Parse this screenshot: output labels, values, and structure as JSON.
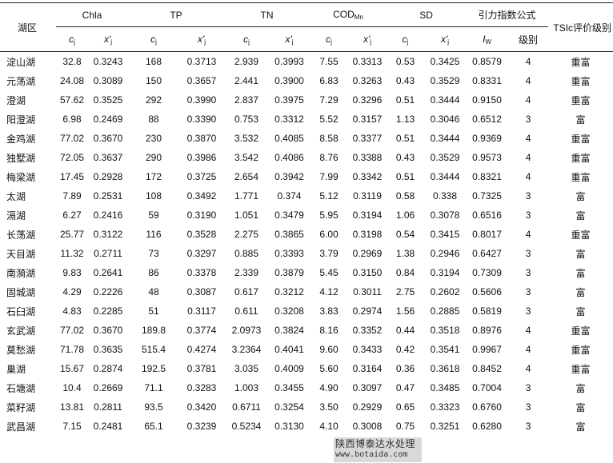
{
  "header": {
    "lake": "湖区",
    "groups": [
      "Chla",
      "TP",
      "TN",
      "COD",
      "SD",
      "引力指数公式"
    ],
    "cod_sub": "Mn",
    "tsi": "TSIc评价级别",
    "c_label": "c",
    "c_sub": "j",
    "x_label": "x'",
    "x_sub": "j",
    "iw_label": "I",
    "iw_sub": "W",
    "level": "级别"
  },
  "rows": [
    [
      "淀山湖",
      "32.8",
      "0.3243",
      "168",
      "0.3713",
      "2.939",
      "0.3993",
      "7.55",
      "0.3313",
      "0.53",
      "0.3425",
      "0.8579",
      "4",
      "重富"
    ],
    [
      "元荡湖",
      "24.08",
      "0.3089",
      "150",
      "0.3657",
      "2.441",
      "0.3900",
      "6.83",
      "0.3263",
      "0.43",
      "0.3529",
      "0.8331",
      "4",
      "重富"
    ],
    [
      "澄湖",
      "57.62",
      "0.3525",
      "292",
      "0.3990",
      "2.837",
      "0.3975",
      "7.29",
      "0.3296",
      "0.51",
      "0.3444",
      "0.9150",
      "4",
      "重富"
    ],
    [
      "阳澄湖",
      "6.98",
      "0.2469",
      "88",
      "0.3390",
      "0.753",
      "0.3312",
      "5.52",
      "0.3157",
      "1.13",
      "0.3046",
      "0.6512",
      "3",
      "富"
    ],
    [
      "金鸡湖",
      "77.02",
      "0.3670",
      "230",
      "0.3870",
      "3.532",
      "0.4085",
      "8.58",
      "0.3377",
      "0.51",
      "0.3444",
      "0.9369",
      "4",
      "重富"
    ],
    [
      "独墅湖",
      "72.05",
      "0.3637",
      "290",
      "0.3986",
      "3.542",
      "0.4086",
      "8.76",
      "0.3388",
      "0.43",
      "0.3529",
      "0.9573",
      "4",
      "重富"
    ],
    [
      "梅梁湖",
      "17.45",
      "0.2928",
      "172",
      "0.3725",
      "2.654",
      "0.3942",
      "7.99",
      "0.3342",
      "0.51",
      "0.3444",
      "0.8321",
      "4",
      "重富"
    ],
    [
      "太湖",
      "7.89",
      "0.2531",
      "108",
      "0.3492",
      "1.771",
      "0.374",
      "5.12",
      "0.3119",
      "0.58",
      "0.338",
      "0.7325",
      "3",
      "富"
    ],
    [
      "滆湖",
      "6.27",
      "0.2416",
      "59",
      "0.3190",
      "1.051",
      "0.3479",
      "5.95",
      "0.3194",
      "1.06",
      "0.3078",
      "0.6516",
      "3",
      "富"
    ],
    [
      "长荡湖",
      "25.77",
      "0.3122",
      "116",
      "0.3528",
      "2.275",
      "0.3865",
      "6.00",
      "0.3198",
      "0.54",
      "0.3415",
      "0.8017",
      "4",
      "重富"
    ],
    [
      "天目湖",
      "11.32",
      "0.2711",
      "73",
      "0.3297",
      "0.885",
      "0.3393",
      "3.79",
      "0.2969",
      "1.38",
      "0.2946",
      "0.6427",
      "3",
      "富"
    ],
    [
      "南漪湖",
      "9.83",
      "0.2641",
      "86",
      "0.3378",
      "2.339",
      "0.3879",
      "5.45",
      "0.3150",
      "0.84",
      "0.3194",
      "0.7309",
      "3",
      "富"
    ],
    [
      "固城湖",
      "4.29",
      "0.2226",
      "48",
      "0.3087",
      "0.617",
      "0.3212",
      "4.12",
      "0.3011",
      "2.75",
      "0.2602",
      "0.5606",
      "3",
      "富"
    ],
    [
      "石臼湖",
      "4.83",
      "0.2285",
      "51",
      "0.3117",
      "0.611",
      "0.3208",
      "3.83",
      "0.2974",
      "1.56",
      "0.2885",
      "0.5819",
      "3",
      "富"
    ],
    [
      "玄武湖",
      "77.02",
      "0.3670",
      "189.8",
      "0.3774",
      "2.0973",
      "0.3824",
      "8.16",
      "0.3352",
      "0.44",
      "0.3518",
      "0.8976",
      "4",
      "重富"
    ],
    [
      "莫愁湖",
      "71.78",
      "0.3635",
      "515.4",
      "0.4274",
      "3.2364",
      "0.4041",
      "9.60",
      "0.3433",
      "0.42",
      "0.3541",
      "0.9967",
      "4",
      "重富"
    ],
    [
      "巢湖",
      "15.67",
      "0.2874",
      "192.5",
      "0.3781",
      "3.035",
      "0.4009",
      "5.60",
      "0.3164",
      "0.36",
      "0.3618",
      "0.8452",
      "4",
      "重富"
    ],
    [
      "石塘湖",
      "10.4",
      "0.2669",
      "71.1",
      "0.3283",
      "1.003",
      "0.3455",
      "4.90",
      "0.3097",
      "0.47",
      "0.3485",
      "0.7004",
      "3",
      "富"
    ],
    [
      "菜籽湖",
      "13.81",
      "0.2811",
      "93.5",
      "0.3420",
      "0.6711",
      "0.3254",
      "3.50",
      "0.2929",
      "0.65",
      "0.3323",
      "0.6760",
      "3",
      "富"
    ],
    [
      "武昌湖",
      "7.15",
      "0.2481",
      "65.1",
      "0.3239",
      "0.5234",
      "0.3130",
      "4.10",
      "0.3008",
      "0.75",
      "0.3251",
      "0.6280",
      "3",
      "富"
    ]
  ],
  "watermark": {
    "line1": "陕西博泰达水处理",
    "line2": "www.botaida.com"
  }
}
